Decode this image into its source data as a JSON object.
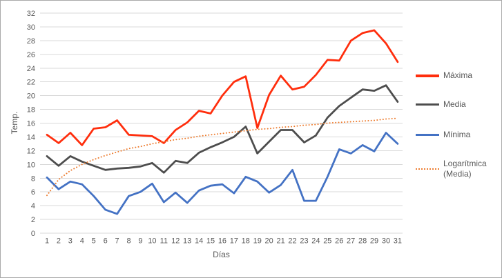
{
  "chart_data": {
    "type": "line",
    "title": "",
    "xlabel": "Días",
    "ylabel": "Temp.",
    "x": [
      1,
      2,
      3,
      4,
      5,
      6,
      7,
      8,
      9,
      10,
      11,
      12,
      13,
      14,
      15,
      16,
      17,
      18,
      19,
      20,
      21,
      22,
      23,
      24,
      25,
      26,
      27,
      28,
      29,
      30,
      31
    ],
    "ylim": [
      0,
      32
    ],
    "ytick_step": 2,
    "grid": "horizontal",
    "legend_position": "right",
    "colors": {
      "grid": "#d9d9d9",
      "axis_text": "#595959"
    },
    "series": [
      {
        "name": "Máxima",
        "color": "#ff2e0d",
        "style": "solid",
        "values": [
          14.3,
          13.1,
          14.6,
          12.8,
          15.2,
          15.4,
          16.4,
          14.3,
          14.2,
          14.1,
          13.1,
          15.0,
          16.1,
          17.8,
          17.4,
          20.0,
          22.0,
          22.8,
          15.3,
          20.1,
          22.9,
          20.9,
          21.3,
          23.0,
          25.2,
          25.1,
          28.0,
          29.1,
          29.5,
          27.6,
          24.9
        ]
      },
      {
        "name": "Media",
        "color": "#4d4d4d",
        "style": "solid",
        "values": [
          11.2,
          9.8,
          11.2,
          10.4,
          9.8,
          9.2,
          9.4,
          9.5,
          9.7,
          10.2,
          8.8,
          10.5,
          10.2,
          11.7,
          12.5,
          13.2,
          14.0,
          15.5,
          11.6,
          13.3,
          15.0,
          15.0,
          13.2,
          14.2,
          16.8,
          18.5,
          19.7,
          20.9,
          20.7,
          21.5,
          19.1
        ]
      },
      {
        "name": "Mínima",
        "color": "#4472c4",
        "style": "solid",
        "values": [
          8.1,
          6.4,
          7.5,
          7.1,
          5.4,
          3.4,
          2.8,
          5.4,
          6.0,
          7.2,
          4.5,
          5.9,
          4.4,
          6.2,
          6.9,
          7.1,
          5.8,
          8.2,
          7.5,
          5.9,
          7.0,
          9.2,
          4.7,
          4.7,
          8.2,
          12.2,
          11.6,
          12.8,
          11.9,
          14.6,
          13.0
        ]
      },
      {
        "name": "Logarítmica (Media)",
        "color": "#ed7d31",
        "style": "dotted",
        "trendline": true,
        "values": [
          5.5,
          7.8,
          9.1,
          10.0,
          10.7,
          11.3,
          11.8,
          12.3,
          12.6,
          13.0,
          13.3,
          13.6,
          13.8,
          14.1,
          14.3,
          14.5,
          14.7,
          14.9,
          15.1,
          15.2,
          15.4,
          15.5,
          15.7,
          15.8,
          16.0,
          16.1,
          16.2,
          16.3,
          16.4,
          16.6,
          16.7
        ]
      }
    ]
  }
}
